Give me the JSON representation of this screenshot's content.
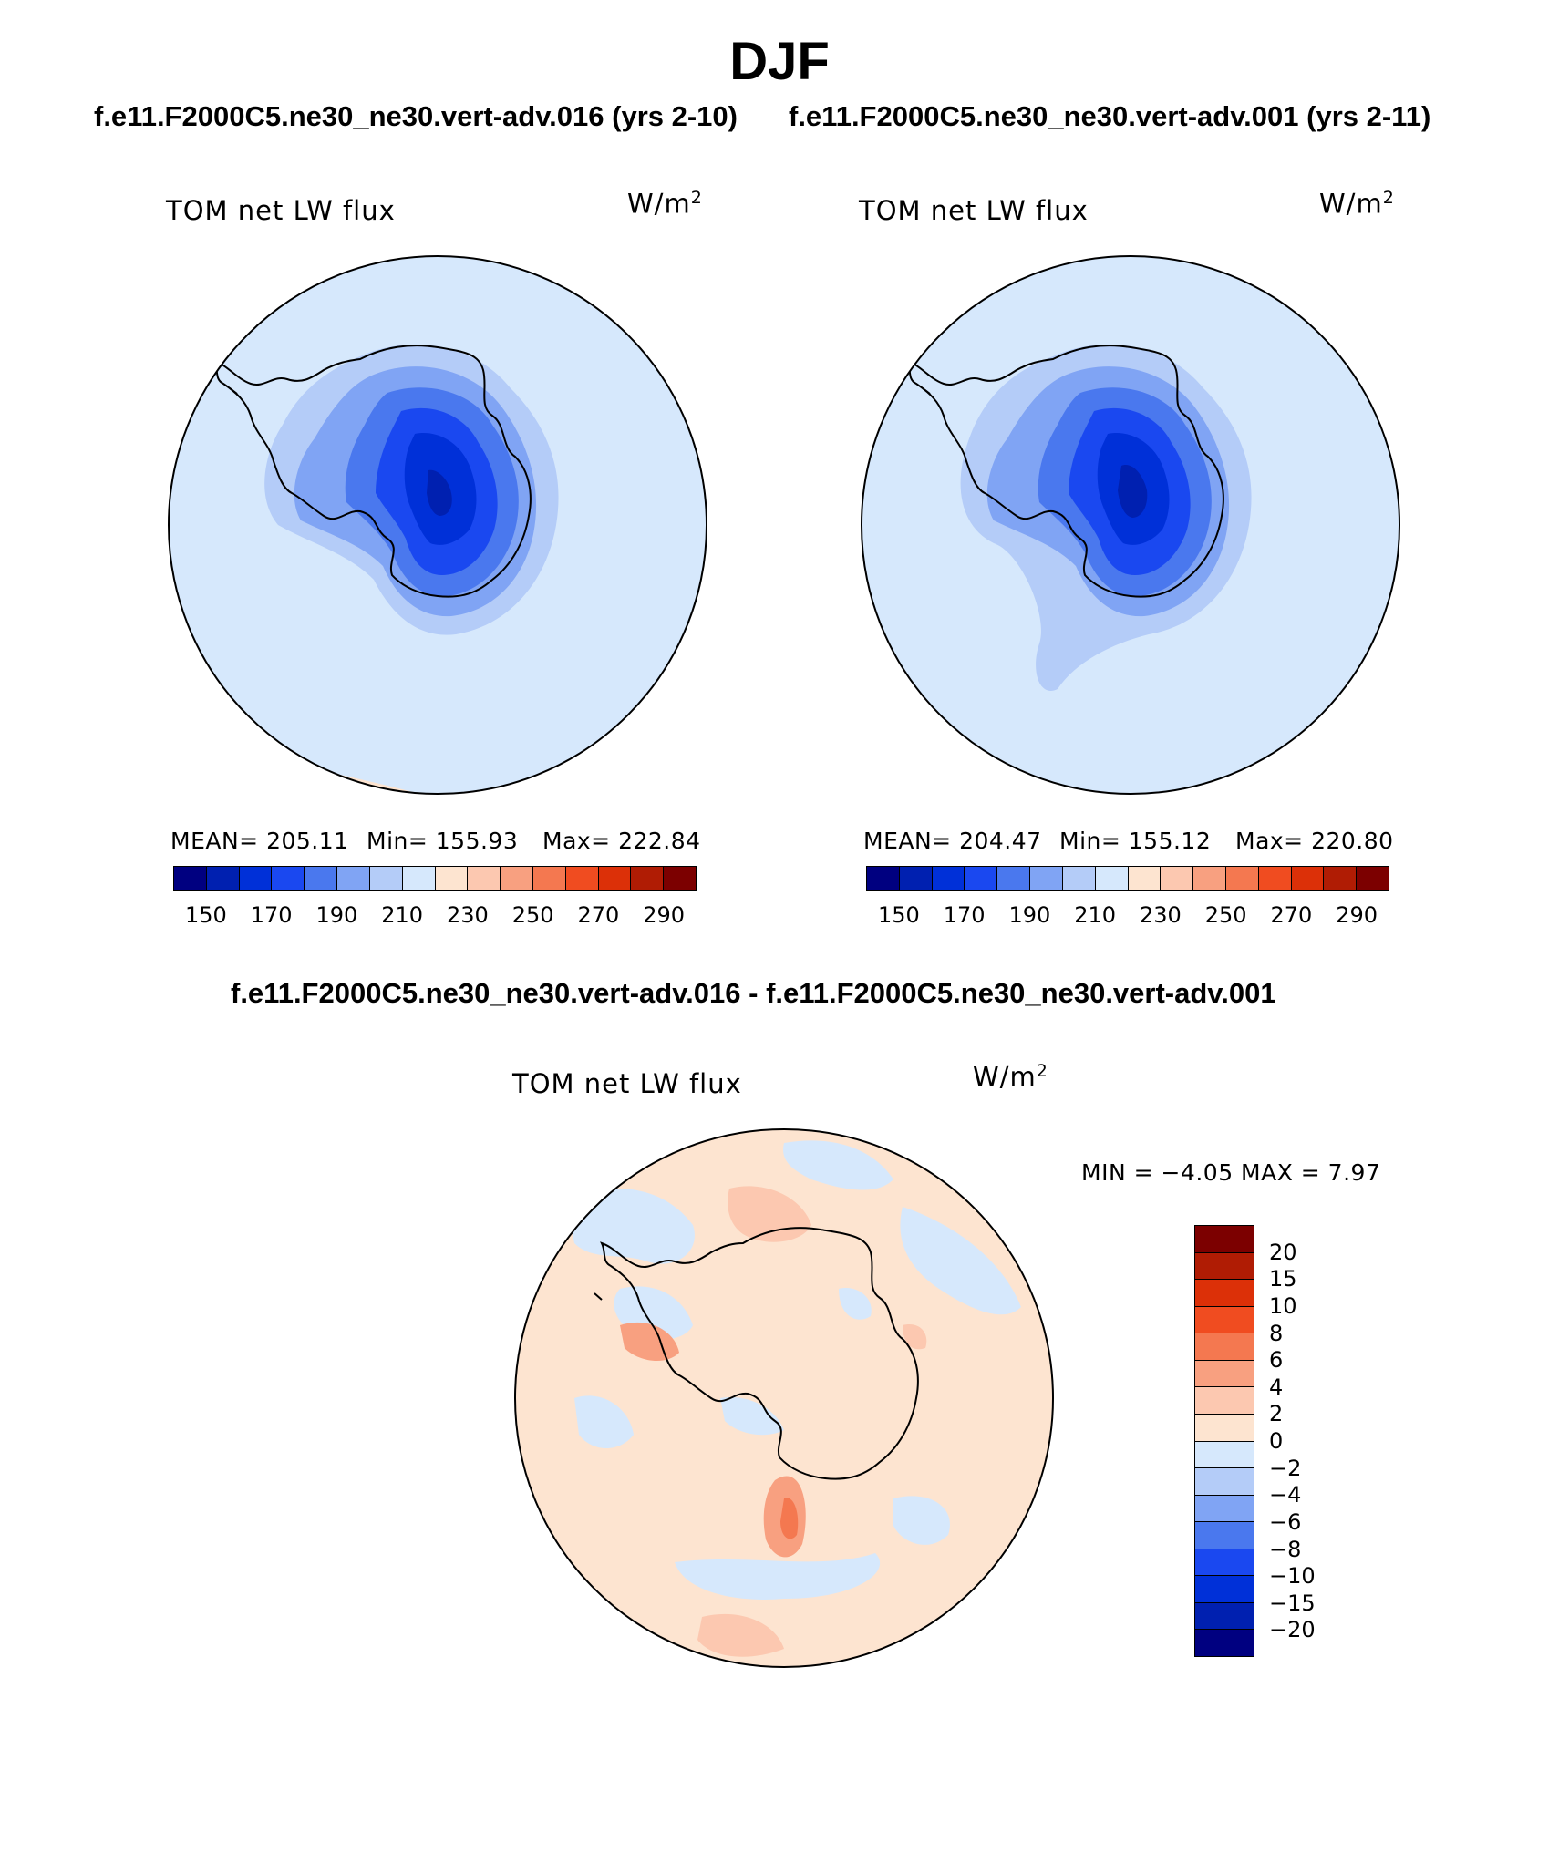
{
  "title": "DJF",
  "panels": [
    {
      "case": "f.e11.F2000C5.ne30_ne30.vert-adv.016 (yrs 2-10)",
      "left_label": "TOM  net  LW  flux",
      "right_label": "W/m",
      "right_label_sup": "2",
      "mean": "MEAN=  205.11",
      "min": "Min=  155.93",
      "max": "Max=  222.84",
      "colorbar_ticks": [
        "150",
        "170",
        "190",
        "210",
        "230",
        "250",
        "270",
        "290"
      ]
    },
    {
      "case": "f.e11.F2000C5.ne30_ne30.vert-adv.001 (yrs 2-11)",
      "left_label": "TOM  net  LW  flux",
      "right_label": "W/m",
      "right_label_sup": "2",
      "mean": "MEAN=  204.47",
      "min": "Min=  155.12",
      "max": "Max=  220.80",
      "colorbar_ticks": [
        "150",
        "170",
        "190",
        "210",
        "230",
        "250",
        "270",
        "290"
      ]
    }
  ],
  "diff": {
    "title": "f.e11.F2000C5.ne30_ne30.vert-adv.016 - f.e11.F2000C5.ne30_ne30.vert-adv.001",
    "left_label": "TOM  net  LW  flux",
    "right_label": "W/m",
    "right_label_sup": "2",
    "minmax": "MIN  =     −4.05  MAX  =      7.97",
    "colorbar_ticks": [
      "20",
      "15",
      "10",
      "8",
      "6",
      "4",
      "2",
      "0",
      "−2",
      "−4",
      "−6",
      "−8",
      "−10",
      "−15",
      "−20"
    ]
  },
  "colors": {
    "abs_scale": [
      "#000080",
      "#0020b0",
      "#0030d8",
      "#1a48f0",
      "#4a78ee",
      "#80a4f4",
      "#b4ccf8",
      "#d6e8fc",
      "#fde4d0",
      "#fcc8b0",
      "#f8a080",
      "#f47850",
      "#f04c20",
      "#dc3008",
      "#b01c04",
      "#7c0000"
    ],
    "diff_scale": [
      "#7c0000",
      "#b01c04",
      "#dc3008",
      "#f04c20",
      "#f47850",
      "#f8a080",
      "#fcc8b0",
      "#fde4d0",
      "#d6e8fc",
      "#b4ccf8",
      "#80a4f4",
      "#4a78ee",
      "#1a48f0",
      "#0030d8",
      "#0020b0",
      "#000080"
    ],
    "ocean": "#d6e8fc",
    "diff_background": "#fde4d0"
  }
}
